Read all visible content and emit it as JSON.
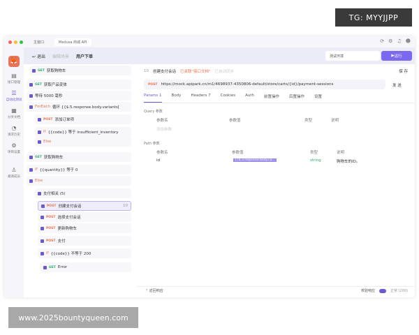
{
  "watermarks": {
    "top": "TG: MYYJJPP",
    "bottom": "www.2025bountyqueen.com"
  },
  "titlebar": {
    "tabs": [
      {
        "label": "主窗口"
      },
      {
        "label": "Medusa 商城 API"
      }
    ]
  },
  "sidebar": {
    "items": [
      {
        "label": "接口管理"
      },
      {
        "label": "自动化测试"
      },
      {
        "label": "分享文档"
      },
      {
        "label": "请求历史"
      },
      {
        "label": "项目设置"
      },
      {
        "label": "邀请成员"
      }
    ]
  },
  "header": {
    "back": "退出",
    "breadcrumb": "编辑场景",
    "title": "用户下单",
    "env": "测试环境",
    "run": "运行"
  },
  "tree": {
    "nodes": [
      {
        "method": "GET",
        "label": "获取购物车"
      },
      {
        "method": "GET",
        "label": "获取产品变体"
      },
      {
        "method": "",
        "label": "等待 5000 毫秒"
      },
      {
        "method": "ForEach",
        "label": "循环 {{$.5.response.body.variants["
      },
      {
        "method": "POST",
        "label": "添加订单项"
      },
      {
        "method": "If",
        "label": "{{code}}  等于  insufficient_inventory"
      },
      {
        "method": "Else",
        "label": ""
      },
      {
        "method": "GET",
        "label": "获取购物车"
      },
      {
        "method": "If",
        "label": "{{quantity}}  等于  0"
      },
      {
        "method": "Else",
        "label": ""
      },
      {
        "method": "",
        "label": "支付相关 (5)"
      },
      {
        "method": "POST",
        "label": "创建支付会话",
        "id": "10"
      },
      {
        "method": "POST",
        "label": "选择支付会话"
      },
      {
        "method": "POST",
        "label": "更新购物车"
      },
      {
        "method": "POST",
        "label": "支付"
      },
      {
        "method": "If",
        "label": "{{code}}  不等于  200"
      },
      {
        "method": "GET",
        "label": "Error"
      }
    ]
  },
  "main": {
    "step_id": "10",
    "step_name": "创建支付会话",
    "linked": "已关联\"接口文档\"",
    "sync": "已自动同步",
    "save": "保 存",
    "method": "POST",
    "url": "https://mock.apipark.cn/m1/4698937-4350806-default/store/carts/{id}/payment-sessions",
    "send": "发 送",
    "tabs": [
      "Params 1",
      "Body",
      "Headers 7",
      "Cookies",
      "Auth",
      "前置操作",
      "后置操作",
      "设置"
    ],
    "query_title": "Query 参数",
    "path_title": "Path 参数",
    "columns": [
      "参数名",
      "参数值",
      "类型",
      "说明"
    ],
    "add_param": "添加参数",
    "path_row": {
      "name": "id",
      "value": "{{$.3.response.body.ca...",
      "type": "string",
      "desc": "购物车的ID。"
    },
    "footer": {
      "response": "返回响应",
      "validate": "校验响应",
      "status": "正常 (200)"
    }
  }
}
